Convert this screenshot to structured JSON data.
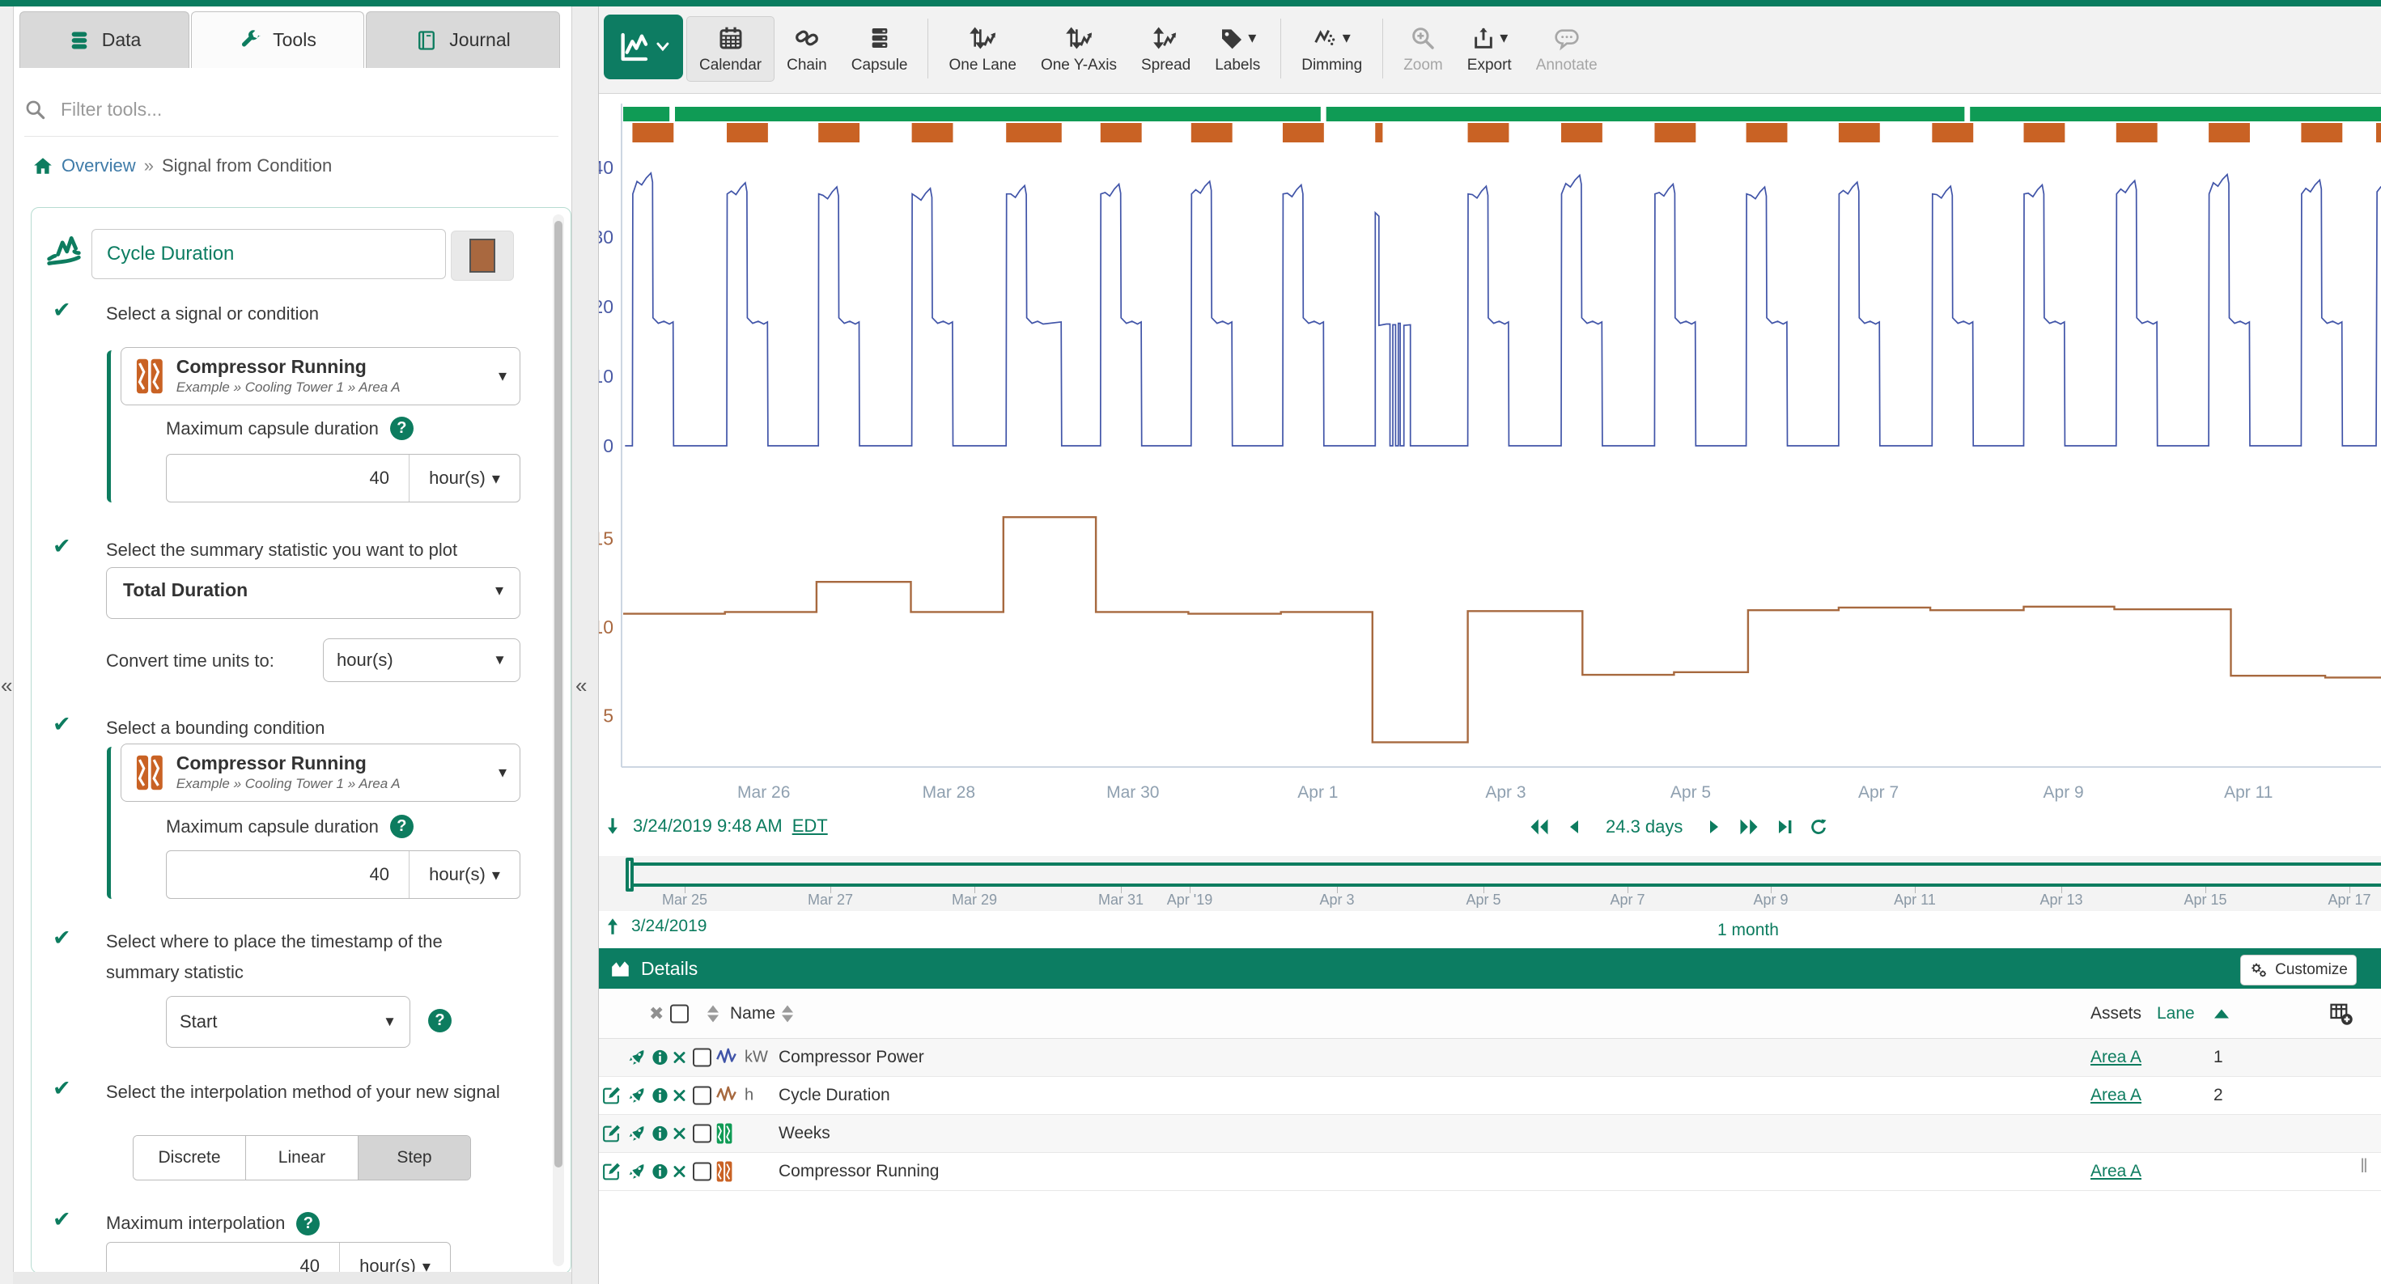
{
  "sidebar": {
    "tabs": [
      {
        "label": "Data",
        "icon": "database-icon",
        "active": false
      },
      {
        "label": "Tools",
        "icon": "wrench-icon",
        "active": true
      },
      {
        "label": "Journal",
        "icon": "book-icon",
        "active": false
      }
    ],
    "filter_placeholder": "Filter tools...",
    "breadcrumb": {
      "items": [
        "Overview",
        "Signal from Condition"
      ],
      "separator": "»"
    },
    "tool": {
      "name": "Cycle Duration",
      "color_swatch": "#a9683f",
      "signal_step": {
        "label": "Select a signal or condition",
        "selection": {
          "name": "Compressor Running",
          "path": "Example » Cooling Tower 1 » Area A"
        },
        "max_capsule_label": "Maximum capsule duration",
        "max_capsule_value": "40",
        "max_capsule_unit": "hour(s)"
      },
      "statistic_step": {
        "label": "Select the summary statistic you want to plot",
        "value": "Total Duration",
        "convert_label": "Convert time units to:",
        "convert_value": "hour(s)"
      },
      "bounding_step": {
        "label": "Select a bounding condition",
        "selection": {
          "name": "Compressor Running",
          "path": "Example » Cooling Tower 1 » Area A"
        },
        "max_capsule_label": "Maximum capsule duration",
        "max_capsule_value": "40",
        "max_capsule_unit": "hour(s)"
      },
      "timestamp_step": {
        "label": "Select where to place the timestamp of the summary statistic",
        "value": "Start"
      },
      "interpolation_step": {
        "label": "Select the interpolation method of your new signal",
        "options": [
          "Discrete",
          "Linear",
          "Step"
        ],
        "selected": "Step"
      },
      "max_interpolation_step": {
        "label": "Maximum interpolation",
        "value": "40",
        "unit": "hour(s)"
      }
    }
  },
  "toolbar": {
    "items": [
      {
        "label": "Calendar",
        "icon": "calendar-icon",
        "active": true
      },
      {
        "label": "Chain",
        "icon": "chain-icon"
      },
      {
        "label": "Capsule",
        "icon": "capsule-icon"
      },
      {
        "sep": true
      },
      {
        "label": "One Lane",
        "icon": "one-lane-icon"
      },
      {
        "label": "One Y-Axis",
        "icon": "one-y-axis-icon"
      },
      {
        "label": "Spread",
        "icon": "spread-icon"
      },
      {
        "label": "Labels",
        "icon": "labels-icon",
        "caret": true
      },
      {
        "sep": true
      },
      {
        "label": "Dimming",
        "icon": "dimming-icon",
        "caret": true
      },
      {
        "sep": true
      },
      {
        "label": "Zoom",
        "icon": "zoom-icon",
        "disabled": true
      },
      {
        "label": "Export",
        "icon": "export-icon",
        "caret": true
      },
      {
        "label": "Annotate",
        "icon": "annotate-icon",
        "disabled": true
      }
    ]
  },
  "chart_data": [
    {
      "type": "area",
      "role": "capsule-lane",
      "name": "Weeks",
      "color": "#0f9b55",
      "start_day": 0,
      "end_day": 19.05,
      "gaps": [
        [
          0.5,
          0.56
        ],
        [
          7.54,
          7.6
        ],
        [
          14.5,
          14.56
        ]
      ]
    },
    {
      "type": "area",
      "role": "capsule-lane",
      "name": "Compressor Running",
      "color": "#c96224",
      "capsules": [
        [
          0.1,
          0.445
        ],
        [
          1.12,
          0.445
        ],
        [
          2.11,
          0.445
        ],
        [
          3.12,
          0.445
        ],
        [
          4.14,
          0.6
        ],
        [
          5.16,
          0.445
        ],
        [
          6.14,
          0.445
        ],
        [
          7.13,
          0.445
        ],
        [
          8.13,
          0.08
        ],
        [
          9.13,
          0.445
        ],
        [
          10.14,
          0.445
        ],
        [
          11.15,
          0.445
        ],
        [
          12.14,
          0.445
        ],
        [
          13.14,
          0.445
        ],
        [
          14.15,
          0.445
        ],
        [
          15.14,
          0.445
        ],
        [
          16.14,
          0.445
        ],
        [
          17.14,
          0.445
        ],
        [
          18.14,
          0.445
        ],
        [
          18.95,
          0.1
        ]
      ]
    },
    {
      "type": "line",
      "name": "Compressor Power",
      "unit": "kW",
      "color": "#4054a8",
      "ylim": [
        0,
        43
      ],
      "yticks": [
        40,
        30,
        20,
        10,
        0
      ],
      "plateau": 17.6,
      "cycles": [
        {
          "t": 0.1,
          "peak": 39.2
        },
        {
          "t": 1.12,
          "peak": 37.8
        },
        {
          "t": 2.11,
          "peak": 37.2
        },
        {
          "t": 3.12,
          "peak": 37.0
        },
        {
          "t": 4.14,
          "peak": 37.4,
          "on": 0.6
        },
        {
          "t": 5.16,
          "peak": 37.6
        },
        {
          "t": 6.14,
          "peak": 38.0
        },
        {
          "t": 7.13,
          "peak": 37.5
        },
        {
          "t": 9.13,
          "peak": 37.3
        },
        {
          "t": 10.14,
          "peak": 38.9
        },
        {
          "t": 11.15,
          "peak": 37.6
        },
        {
          "t": 12.14,
          "peak": 37.2
        },
        {
          "t": 13.14,
          "peak": 37.9
        },
        {
          "t": 14.15,
          "peak": 37.3
        },
        {
          "t": 15.14,
          "peak": 37.5
        },
        {
          "t": 16.14,
          "peak": 38.1
        },
        {
          "t": 17.14,
          "peak": 39.0
        },
        {
          "t": 18.14,
          "peak": 38.2
        }
      ],
      "irregular": [
        [
          8.13,
          0
        ],
        [
          8.13,
          33.5
        ],
        [
          8.17,
          33.0
        ],
        [
          8.17,
          17.3
        ],
        [
          8.25,
          17.5
        ],
        [
          8.29,
          17.5
        ],
        [
          8.29,
          0
        ],
        [
          8.32,
          0
        ],
        [
          8.32,
          17.4
        ],
        [
          8.35,
          17.4
        ],
        [
          8.35,
          0
        ],
        [
          8.38,
          0
        ],
        [
          8.38,
          17.6
        ],
        [
          8.4,
          17.6
        ],
        [
          8.4,
          0
        ],
        [
          8.44,
          0
        ],
        [
          8.44,
          17.3
        ],
        [
          8.51,
          17.4
        ],
        [
          8.51,
          0
        ]
      ],
      "edge_spike": [
        [
          18.95,
          0
        ],
        [
          18.96,
          36.5
        ],
        [
          19.0,
          37.2
        ],
        [
          19.05,
          37.6
        ]
      ]
    },
    {
      "type": "line",
      "name": "Cycle Duration",
      "unit": "h",
      "color": "#a7693f",
      "ylim": [
        2,
        18
      ],
      "yticks": [
        15,
        10,
        5
      ],
      "end_day": 19.05,
      "steps": [
        [
          0,
          10.75
        ],
        [
          1.1,
          10.85
        ],
        [
          2.09,
          12.55
        ],
        [
          3.11,
          10.85
        ],
        [
          4.11,
          16.2
        ],
        [
          5.11,
          10.85
        ],
        [
          6.11,
          10.75
        ],
        [
          7.11,
          10.85
        ],
        [
          8.1,
          3.5
        ],
        [
          9.13,
          10.9
        ],
        [
          10.37,
          7.3
        ],
        [
          11.36,
          7.45
        ],
        [
          12.16,
          10.95
        ],
        [
          13.14,
          11.1
        ],
        [
          14.13,
          10.95
        ],
        [
          15.14,
          11.15
        ],
        [
          16.12,
          11.0
        ],
        [
          17.38,
          7.25
        ],
        [
          18.4,
          7.15
        ]
      ]
    },
    {
      "type": "axis",
      "x_labels": [
        [
          "Mar 26",
          1.52
        ],
        [
          "Mar 28",
          3.52
        ],
        [
          "Mar 30",
          5.51
        ],
        [
          "Apr 1",
          7.51
        ],
        [
          "Apr 3",
          9.54
        ],
        [
          "Apr 5",
          11.54
        ],
        [
          "Apr 7",
          13.57
        ],
        [
          "Apr 9",
          15.57
        ],
        [
          "Apr 11",
          17.57
        ]
      ]
    }
  ],
  "range": {
    "start_label": "3/24/2019 9:48 AM",
    "tz": "EDT",
    "duration": "24.3 days",
    "bottom_start": "3/24/2019",
    "window": "1 month"
  },
  "timeline": {
    "labels": [
      [
        "Mar 25",
        846
      ],
      [
        "Mar 27",
        1026
      ],
      [
        "Mar 29",
        1204
      ],
      [
        "Mar 31",
        1385
      ],
      [
        "Apr '19",
        1470
      ],
      [
        "Apr 3",
        1652
      ],
      [
        "Apr 5",
        1833
      ],
      [
        "Apr 7",
        2011
      ],
      [
        "Apr 9",
        2188
      ],
      [
        "Apr 11",
        2366
      ],
      [
        "Apr 13",
        2547
      ],
      [
        "Apr 15",
        2725
      ],
      [
        "Apr 17",
        2903
      ]
    ]
  },
  "details": {
    "title": "Details",
    "customize_label": "Customize",
    "columns": {
      "name": "Name",
      "assets": "Assets",
      "lane": "Lane"
    },
    "rows": [
      {
        "editable": false,
        "item_icon": "signal-blue-icon",
        "unit": "kW",
        "name": "Compressor Power",
        "asset": "Area A",
        "lane": "1"
      },
      {
        "editable": true,
        "item_icon": "signal-brown-icon",
        "unit": "h",
        "name": "Cycle Duration",
        "asset": "Area A",
        "lane": "2"
      },
      {
        "editable": true,
        "item_icon": "condition-green-icon",
        "unit": "",
        "name": "Weeks",
        "asset": "",
        "lane": ""
      },
      {
        "editable": true,
        "item_icon": "condition-orange-icon",
        "unit": "",
        "name": "Compressor Running",
        "asset": "Area A",
        "lane": ""
      }
    ]
  }
}
